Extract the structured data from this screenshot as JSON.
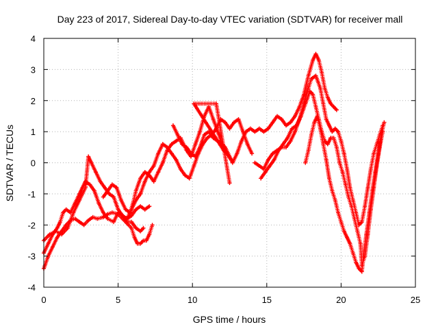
{
  "chart_data": {
    "type": "scatter",
    "title": "Day 223 of 2017, Sidereal Day-to-day VTEC variation (SDTVAR) for receiver mall",
    "xlabel": "GPS time / hours",
    "ylabel": "SDTVAR / TECUs",
    "xlim": [
      0,
      25
    ],
    "ylim": [
      -4,
      4
    ],
    "xticks": [
      0,
      5,
      10,
      15,
      20,
      25
    ],
    "yticks": [
      -4,
      -3,
      -2,
      -1,
      0,
      1,
      2,
      3,
      4
    ],
    "grid": true,
    "marker": "plus",
    "color": "#ff0000",
    "series": [
      {
        "points": [
          [
            0.0,
            -3.4
          ],
          [
            0.3,
            -3.0
          ],
          [
            0.6,
            -2.7
          ],
          [
            0.9,
            -2.4
          ],
          [
            1.2,
            -2.2
          ],
          [
            1.5,
            -2.0
          ],
          [
            1.8,
            -1.85
          ],
          [
            2.1,
            -1.8
          ],
          [
            2.4,
            -1.9
          ],
          [
            2.7,
            -2.0
          ],
          [
            3.0,
            -1.85
          ],
          [
            3.3,
            -1.75
          ],
          [
            3.6,
            -1.8
          ],
          [
            4.0,
            -1.75
          ],
          [
            4.3,
            -1.65
          ],
          [
            4.6,
            -1.6
          ],
          [
            5.0,
            -1.65
          ],
          [
            5.3,
            -1.8
          ],
          [
            5.6,
            -1.95
          ],
          [
            5.9,
            -2.1
          ],
          [
            6.1,
            -2.4
          ],
          [
            6.3,
            -2.6
          ],
          [
            6.5,
            -2.6
          ],
          [
            6.7,
            -2.5
          ],
          [
            6.9,
            -2.5
          ],
          [
            7.1,
            -2.3
          ],
          [
            7.3,
            -2.0
          ]
        ]
      },
      {
        "points": [
          [
            0.0,
            -2.9
          ],
          [
            0.3,
            -2.6
          ],
          [
            0.6,
            -2.3
          ],
          [
            0.9,
            -2.1
          ],
          [
            1.1,
            -1.9
          ],
          [
            1.3,
            -1.6
          ],
          [
            1.5,
            -1.5
          ],
          [
            1.8,
            -1.6
          ],
          [
            2.1,
            -1.3
          ],
          [
            2.4,
            -1.0
          ],
          [
            2.6,
            -0.8
          ],
          [
            2.8,
            -0.6
          ],
          [
            3.1,
            -0.7
          ],
          [
            3.4,
            -0.9
          ],
          [
            3.7,
            -1.3
          ],
          [
            4.0,
            -1.6
          ],
          [
            4.3,
            -1.8
          ],
          [
            4.7,
            -1.9
          ],
          [
            5.0,
            -1.6
          ],
          [
            5.3,
            -1.7
          ],
          [
            5.6,
            -1.9
          ],
          [
            5.9,
            -1.9
          ],
          [
            6.2,
            -2.1
          ],
          [
            6.5,
            -2.2
          ],
          [
            6.7,
            -2.1
          ]
        ]
      },
      {
        "points": [
          [
            0.0,
            -2.5
          ],
          [
            0.4,
            -2.3
          ],
          [
            0.8,
            -2.2
          ],
          [
            1.2,
            -2.3
          ],
          [
            1.6,
            -2.1
          ],
          [
            2.0,
            -1.6
          ],
          [
            2.4,
            -1.2
          ],
          [
            2.8,
            -0.8
          ],
          [
            3.0,
            0.2
          ],
          [
            3.2,
            0.0
          ],
          [
            3.5,
            -0.3
          ],
          [
            3.8,
            -0.6
          ],
          [
            4.1,
            -0.8
          ],
          [
            4.4,
            -1.0
          ],
          [
            4.7,
            -1.1
          ],
          [
            5.0,
            -1.5
          ],
          [
            5.3,
            -1.7
          ],
          [
            5.6,
            -1.8
          ],
          [
            5.9,
            -1.7
          ],
          [
            6.2,
            -1.5
          ],
          [
            6.5,
            -1.4
          ],
          [
            6.8,
            -1.5
          ],
          [
            7.1,
            -1.4
          ]
        ]
      },
      {
        "points": [
          [
            4.0,
            -1.1
          ],
          [
            4.3,
            -0.9
          ],
          [
            4.6,
            -0.7
          ],
          [
            4.9,
            -0.8
          ],
          [
            5.2,
            -1.2
          ],
          [
            5.5,
            -1.5
          ],
          [
            5.8,
            -1.6
          ],
          [
            6.0,
            -1.3
          ],
          [
            6.2,
            -0.9
          ],
          [
            6.5,
            -0.5
          ],
          [
            6.8,
            -0.3
          ],
          [
            7.1,
            -0.4
          ],
          [
            7.4,
            -0.6
          ],
          [
            7.7,
            -0.3
          ],
          [
            8.0,
            0.0
          ],
          [
            8.3,
            0.4
          ],
          [
            8.6,
            0.6
          ],
          [
            8.9,
            0.7
          ],
          [
            9.2,
            0.8
          ],
          [
            9.6,
            0.4
          ],
          [
            9.9,
            0.2
          ],
          [
            10.2,
            0.6
          ],
          [
            10.5,
            1.0
          ],
          [
            10.8,
            1.5
          ],
          [
            11.1,
            1.8
          ],
          [
            11.4,
            1.4
          ],
          [
            11.7,
            1.0
          ],
          [
            12.0,
            0.6
          ],
          [
            12.3,
            0.3
          ],
          [
            12.6,
            0.1
          ]
        ]
      },
      {
        "points": [
          [
            5.6,
            -1.8
          ],
          [
            5.9,
            -1.5
          ],
          [
            6.2,
            -1.2
          ],
          [
            6.5,
            -1.0
          ],
          [
            6.8,
            -0.6
          ],
          [
            7.1,
            -0.3
          ],
          [
            7.4,
            -0.1
          ],
          [
            7.7,
            0.3
          ],
          [
            8.0,
            0.6
          ],
          [
            8.3,
            0.5
          ],
          [
            8.6,
            0.3
          ],
          [
            8.9,
            0.1
          ],
          [
            9.2,
            -0.2
          ],
          [
            9.5,
            -0.4
          ],
          [
            9.8,
            -0.5
          ],
          [
            10.1,
            -0.1
          ],
          [
            10.4,
            0.3
          ],
          [
            10.7,
            0.6
          ],
          [
            11.0,
            0.8
          ],
          [
            11.3,
            0.9
          ],
          [
            11.6,
            1.1
          ],
          [
            11.9,
            1.4
          ],
          [
            12.2,
            1.3
          ],
          [
            12.5,
            1.1
          ],
          [
            12.8,
            1.3
          ],
          [
            13.1,
            1.4
          ],
          [
            13.4,
            1.0
          ],
          [
            13.7,
            0.6
          ],
          [
            14.0,
            0.3
          ]
        ]
      },
      {
        "points": [
          [
            8.7,
            1.2
          ],
          [
            9.0,
            0.9
          ],
          [
            9.3,
            0.6
          ],
          [
            9.6,
            0.5
          ],
          [
            9.9,
            0.3
          ],
          [
            10.2,
            0.2
          ],
          [
            10.5,
            0.5
          ],
          [
            10.8,
            0.9
          ],
          [
            11.1,
            1.0
          ],
          [
            11.4,
            0.8
          ],
          [
            11.7,
            0.7
          ],
          [
            12.0,
            0.6
          ],
          [
            12.2,
            0.5
          ],
          [
            12.5,
            0.2
          ],
          [
            12.7,
            0.0
          ],
          [
            13.0,
            0.3
          ],
          [
            13.3,
            0.7
          ],
          [
            13.6,
            1.0
          ],
          [
            13.9,
            1.1
          ],
          [
            14.2,
            1.0
          ],
          [
            14.5,
            1.1
          ],
          [
            14.8,
            1.0
          ],
          [
            15.1,
            1.1
          ],
          [
            15.4,
            1.3
          ],
          [
            15.7,
            1.5
          ],
          [
            16.0,
            1.4
          ],
          [
            16.3,
            1.2
          ],
          [
            16.6,
            1.3
          ],
          [
            16.9,
            1.5
          ],
          [
            17.2,
            1.8
          ],
          [
            17.5,
            2.2
          ],
          [
            17.8,
            2.8
          ],
          [
            18.1,
            3.3
          ],
          [
            18.3,
            3.5
          ],
          [
            18.5,
            3.3
          ],
          [
            18.7,
            2.9
          ],
          [
            18.9,
            2.4
          ],
          [
            19.1,
            2.1
          ],
          [
            19.3,
            1.9
          ],
          [
            19.5,
            1.8
          ],
          [
            19.7,
            1.7
          ]
        ]
      },
      {
        "points": [
          [
            14.2,
            0.0
          ],
          [
            14.5,
            -0.1
          ],
          [
            14.8,
            -0.2
          ],
          [
            15.1,
            0.1
          ],
          [
            15.4,
            0.3
          ],
          [
            15.7,
            0.4
          ],
          [
            16.0,
            0.5
          ],
          [
            16.3,
            0.5
          ],
          [
            16.6,
            0.7
          ],
          [
            16.9,
            1.0
          ],
          [
            17.2,
            1.4
          ],
          [
            17.5,
            1.9
          ],
          [
            17.8,
            2.4
          ],
          [
            18.0,
            2.7
          ],
          [
            18.3,
            2.8
          ],
          [
            18.6,
            2.4
          ],
          [
            18.8,
            1.9
          ],
          [
            19.0,
            1.4
          ],
          [
            19.2,
            1.2
          ],
          [
            19.4,
            1.0
          ],
          [
            19.6,
            1.1
          ],
          [
            19.8,
            1.0
          ],
          [
            20.0,
            0.7
          ],
          [
            20.2,
            0.3
          ],
          [
            20.4,
            -0.2
          ],
          [
            20.6,
            -0.8
          ],
          [
            20.8,
            -1.2
          ],
          [
            21.0,
            -1.6
          ],
          [
            21.2,
            -2.0
          ],
          [
            21.4,
            -1.9
          ],
          [
            21.6,
            -1.4
          ],
          [
            21.8,
            -0.8
          ],
          [
            22.0,
            -0.2
          ],
          [
            22.2,
            0.3
          ],
          [
            22.4,
            0.6
          ],
          [
            22.6,
            0.9
          ],
          [
            22.8,
            1.2
          ]
        ]
      },
      {
        "points": [
          [
            14.6,
            -0.5
          ],
          [
            14.9,
            -0.3
          ],
          [
            15.2,
            -0.1
          ],
          [
            15.5,
            0.1
          ],
          [
            15.8,
            0.4
          ],
          [
            16.1,
            0.6
          ],
          [
            16.4,
            0.8
          ],
          [
            16.7,
            1.1
          ],
          [
            17.0,
            1.2
          ],
          [
            17.3,
            1.5
          ],
          [
            17.6,
            1.9
          ],
          [
            17.9,
            2.3
          ],
          [
            18.1,
            2.2
          ],
          [
            18.3,
            1.8
          ],
          [
            18.5,
            1.4
          ],
          [
            18.7,
            1.0
          ],
          [
            18.9,
            0.7
          ],
          [
            19.1,
            0.6
          ],
          [
            19.3,
            0.8
          ],
          [
            19.5,
            0.8
          ],
          [
            19.7,
            0.5
          ],
          [
            19.9,
            0.0
          ],
          [
            20.1,
            -0.3
          ],
          [
            20.3,
            -0.7
          ],
          [
            20.5,
            -1.1
          ],
          [
            20.7,
            -1.4
          ],
          [
            20.9,
            -1.8
          ],
          [
            21.1,
            -2.2
          ],
          [
            21.3,
            -2.6
          ],
          [
            21.4,
            -3.3
          ],
          [
            21.6,
            -3.0
          ],
          [
            21.8,
            -2.3
          ],
          [
            22.0,
            -1.5
          ],
          [
            22.2,
            -0.8
          ],
          [
            22.4,
            -0.1
          ],
          [
            22.6,
            0.5
          ],
          [
            22.8,
            1.0
          ]
        ]
      },
      {
        "points": [
          [
            17.6,
            0.0
          ],
          [
            17.8,
            0.4
          ],
          [
            18.0,
            0.9
          ],
          [
            18.2,
            1.3
          ],
          [
            18.4,
            1.5
          ],
          [
            18.6,
            1.1
          ],
          [
            18.8,
            0.6
          ],
          [
            19.0,
            0.1
          ],
          [
            19.2,
            -0.5
          ],
          [
            19.4,
            -0.9
          ],
          [
            19.6,
            -1.2
          ],
          [
            19.8,
            -1.6
          ],
          [
            20.0,
            -1.9
          ],
          [
            20.2,
            -2.2
          ],
          [
            20.4,
            -2.4
          ],
          [
            20.6,
            -2.6
          ],
          [
            20.8,
            -2.9
          ],
          [
            21.0,
            -3.2
          ],
          [
            21.2,
            -3.4
          ],
          [
            21.4,
            -3.5
          ],
          [
            21.5,
            -3.0
          ],
          [
            21.7,
            -2.3
          ],
          [
            21.9,
            -1.6
          ],
          [
            22.1,
            -0.9
          ],
          [
            22.3,
            -0.3
          ],
          [
            22.5,
            0.3
          ],
          [
            22.7,
            0.9
          ],
          [
            22.9,
            1.3
          ]
        ]
      },
      {
        "points": [
          [
            12.5,
            -0.65
          ],
          [
            11.6,
            1.9
          ],
          [
            10.1,
            1.9
          ],
          [
            12.1,
            0.4
          ]
        ]
      }
    ]
  }
}
